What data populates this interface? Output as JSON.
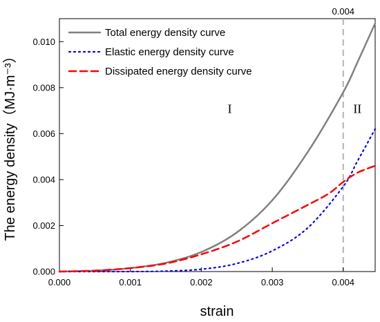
{
  "chart_data": {
    "type": "line",
    "xlabel": "strain",
    "ylabel": "The energy density（MJ·m⁻³）",
    "xlim": [
      0,
      0.00445
    ],
    "ylim": [
      0,
      0.011
    ],
    "x_ticks": [
      {
        "value": 0,
        "label": "0.000"
      },
      {
        "value": 0.001,
        "label": "0.001"
      },
      {
        "value": 0.002,
        "label": "0.002"
      },
      {
        "value": 0.003,
        "label": "0.003"
      },
      {
        "value": 0.004,
        "label": "0.004"
      }
    ],
    "y_ticks": [
      {
        "value": 0,
        "label": "0.000"
      },
      {
        "value": 0.002,
        "label": "0.002"
      },
      {
        "value": 0.004,
        "label": "0.004"
      },
      {
        "value": 0.006,
        "label": "0.006"
      },
      {
        "value": 0.008,
        "label": "0.008"
      },
      {
        "value": 0.01,
        "label": "0.010"
      }
    ],
    "legend_position": "top-left",
    "grid": false,
    "series": [
      {
        "name": "Total energy density curve",
        "color": "#808080",
        "style": "solid",
        "x": [
          0,
          0.0005,
          0.001,
          0.0015,
          0.002,
          0.0025,
          0.003,
          0.0035,
          0.004,
          0.0042,
          0.00445
        ],
        "y": [
          0,
          4e-05,
          0.00015,
          0.00038,
          0.00085,
          0.0017,
          0.0031,
          0.0052,
          0.0078,
          0.0091,
          0.0108
        ]
      },
      {
        "name": "Elastic energy density curve",
        "color": "#0000ff",
        "style": "dotted",
        "x": [
          0,
          0.001,
          0.0015,
          0.002,
          0.0025,
          0.003,
          0.0035,
          0.004,
          0.0042,
          0.00445
        ],
        "y": [
          0,
          0,
          2e-05,
          0.0001,
          0.00035,
          0.0009,
          0.0019,
          0.0037,
          0.0048,
          0.0062
        ]
      },
      {
        "name": "Dissipated energy density curve",
        "color": "#ff0000",
        "style": "dashed",
        "x": [
          0,
          0.0005,
          0.001,
          0.0015,
          0.002,
          0.0025,
          0.003,
          0.0035,
          0.0038,
          0.004,
          0.0042,
          0.00445
        ],
        "y": [
          0,
          4e-05,
          0.00015,
          0.00035,
          0.00075,
          0.0013,
          0.0021,
          0.0029,
          0.0034,
          0.0039,
          0.0043,
          0.0046
        ]
      }
    ],
    "annotations": [
      {
        "type": "vline",
        "x": 0.004,
        "label": "0.004",
        "color": "#b3b3b3"
      },
      {
        "type": "text",
        "x": 0.0024,
        "y": 0.0069,
        "label": "I"
      },
      {
        "type": "text",
        "x": 0.0042,
        "y": 0.0069,
        "label": "II"
      }
    ]
  }
}
